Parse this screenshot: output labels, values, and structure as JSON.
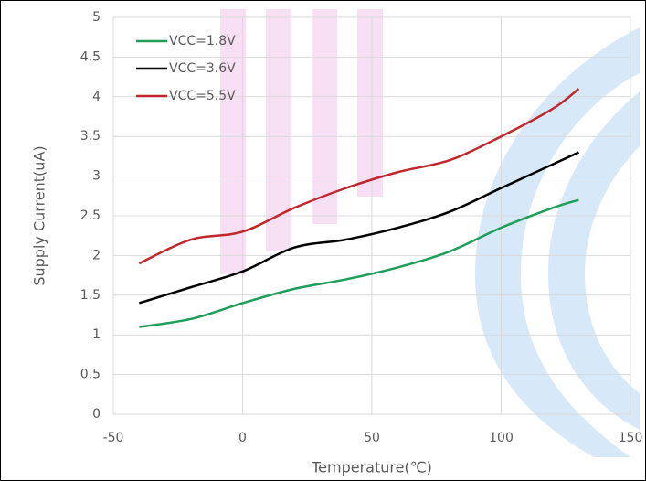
{
  "chart_data": {
    "type": "line",
    "x_label": "Temperature(℃)",
    "y_label": "Supply Current(uA)",
    "x": [
      -40,
      -20,
      0,
      20,
      40,
      60,
      80,
      100,
      120,
      130
    ],
    "series": [
      {
        "name": "VCC=1.8V",
        "color": "#1e9e5a",
        "values": [
          1.1,
          1.2,
          1.4,
          1.58,
          1.7,
          1.85,
          2.05,
          2.35,
          2.6,
          2.7
        ]
      },
      {
        "name": "VCC=3.6V",
        "color": "#000000",
        "values": [
          1.4,
          1.6,
          1.8,
          2.1,
          2.2,
          2.35,
          2.55,
          2.85,
          3.15,
          3.3
        ]
      },
      {
        "name": "VCC=5.5V",
        "color": "#c0282d",
        "values": [
          1.9,
          2.2,
          2.3,
          2.6,
          2.85,
          3.05,
          3.2,
          3.5,
          3.85,
          4.1
        ]
      }
    ],
    "xlim": [
      -50,
      150
    ],
    "xticks": [
      -50,
      0,
      50,
      100,
      150
    ],
    "ylim": [
      0,
      5
    ],
    "yticks": [
      0,
      0.5,
      1,
      1.5,
      2,
      2.5,
      3,
      3.5,
      4,
      4.5,
      5
    ],
    "grid": true,
    "legend": "upper left"
  }
}
